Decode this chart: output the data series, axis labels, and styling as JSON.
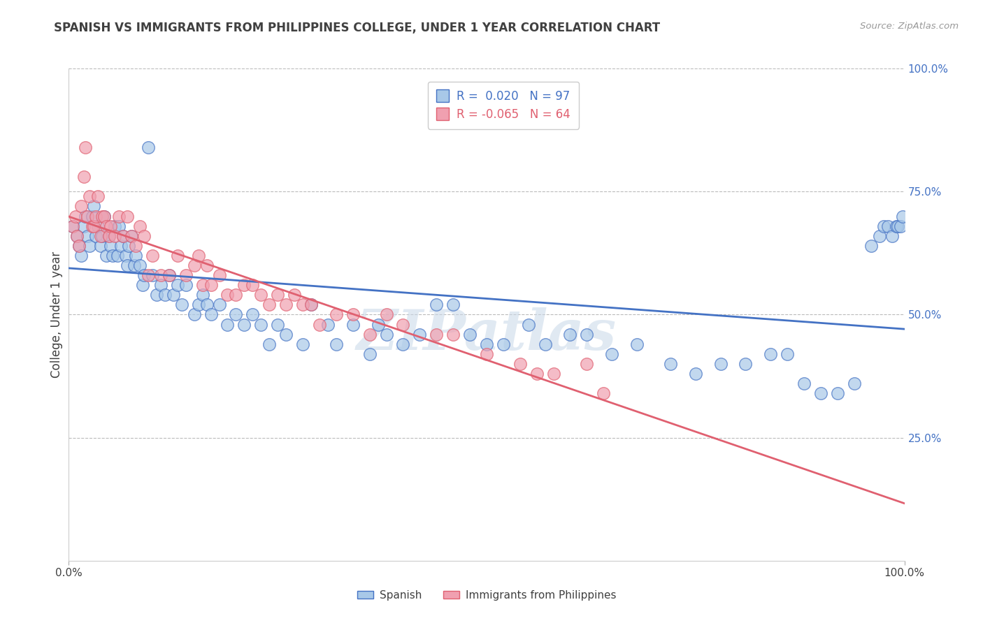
{
  "title": "SPANISH VS IMMIGRANTS FROM PHILIPPINES COLLEGE, UNDER 1 YEAR CORRELATION CHART",
  "source_text": "Source: ZipAtlas.com",
  "ylabel": "College, Under 1 year",
  "xlim": [
    0.0,
    1.0
  ],
  "ylim": [
    0.0,
    1.0
  ],
  "xtick_labels": [
    "0.0%",
    "100.0%"
  ],
  "ytick_labels_right": [
    "100.0%",
    "75.0%",
    "50.0%",
    "25.0%"
  ],
  "right_yticks": [
    1.0,
    0.75,
    0.5,
    0.25
  ],
  "blue_color": "#A8C8E8",
  "pink_color": "#F0A0B0",
  "blue_line_color": "#4472C4",
  "pink_line_color": "#E06070",
  "R_blue": 0.02,
  "N_blue": 97,
  "R_pink": -0.065,
  "N_pink": 64,
  "legend_label_blue": "Spanish",
  "legend_label_pink": "Immigrants from Philippines",
  "watermark": "ZIPatlas",
  "background_color": "#FFFFFF",
  "grid_color": "#BBBBBB",
  "title_color": "#404040",
  "axis_label_color": "#404040",
  "right_axis_color": "#4472C4",
  "blue_scatter_x": [
    0.005,
    0.01,
    0.012,
    0.015,
    0.018,
    0.02,
    0.022,
    0.025,
    0.028,
    0.03,
    0.032,
    0.035,
    0.038,
    0.04,
    0.042,
    0.045,
    0.048,
    0.05,
    0.052,
    0.055,
    0.058,
    0.06,
    0.062,
    0.065,
    0.068,
    0.07,
    0.072,
    0.075,
    0.078,
    0.08,
    0.085,
    0.088,
    0.09,
    0.095,
    0.1,
    0.105,
    0.11,
    0.115,
    0.12,
    0.125,
    0.13,
    0.135,
    0.14,
    0.15,
    0.155,
    0.16,
    0.165,
    0.17,
    0.18,
    0.19,
    0.2,
    0.21,
    0.22,
    0.23,
    0.24,
    0.25,
    0.26,
    0.28,
    0.29,
    0.31,
    0.32,
    0.34,
    0.36,
    0.37,
    0.38,
    0.4,
    0.42,
    0.44,
    0.46,
    0.48,
    0.5,
    0.52,
    0.55,
    0.57,
    0.6,
    0.62,
    0.65,
    0.68,
    0.72,
    0.75,
    0.78,
    0.81,
    0.84,
    0.86,
    0.88,
    0.9,
    0.92,
    0.94,
    0.96,
    0.97,
    0.975,
    0.98,
    0.985,
    0.99,
    0.992,
    0.995,
    0.998
  ],
  "blue_scatter_y": [
    0.68,
    0.66,
    0.64,
    0.62,
    0.68,
    0.7,
    0.66,
    0.64,
    0.7,
    0.72,
    0.66,
    0.68,
    0.64,
    0.66,
    0.7,
    0.62,
    0.66,
    0.64,
    0.62,
    0.68,
    0.62,
    0.68,
    0.64,
    0.66,
    0.62,
    0.6,
    0.64,
    0.66,
    0.6,
    0.62,
    0.6,
    0.56,
    0.58,
    0.84,
    0.58,
    0.54,
    0.56,
    0.54,
    0.58,
    0.54,
    0.56,
    0.52,
    0.56,
    0.5,
    0.52,
    0.54,
    0.52,
    0.5,
    0.52,
    0.48,
    0.5,
    0.48,
    0.5,
    0.48,
    0.44,
    0.48,
    0.46,
    0.44,
    0.52,
    0.48,
    0.44,
    0.48,
    0.42,
    0.48,
    0.46,
    0.44,
    0.46,
    0.52,
    0.52,
    0.46,
    0.44,
    0.44,
    0.48,
    0.44,
    0.46,
    0.46,
    0.42,
    0.44,
    0.4,
    0.38,
    0.4,
    0.4,
    0.42,
    0.42,
    0.36,
    0.34,
    0.34,
    0.36,
    0.64,
    0.66,
    0.68,
    0.68,
    0.66,
    0.68,
    0.68,
    0.68,
    0.7
  ],
  "pink_scatter_x": [
    0.005,
    0.008,
    0.01,
    0.012,
    0.015,
    0.018,
    0.02,
    0.022,
    0.025,
    0.028,
    0.03,
    0.032,
    0.035,
    0.038,
    0.04,
    0.042,
    0.045,
    0.048,
    0.05,
    0.055,
    0.06,
    0.065,
    0.07,
    0.075,
    0.08,
    0.085,
    0.09,
    0.095,
    0.1,
    0.11,
    0.12,
    0.13,
    0.14,
    0.15,
    0.155,
    0.16,
    0.165,
    0.17,
    0.18,
    0.19,
    0.2,
    0.21,
    0.22,
    0.23,
    0.24,
    0.25,
    0.26,
    0.27,
    0.28,
    0.29,
    0.3,
    0.32,
    0.34,
    0.36,
    0.38,
    0.4,
    0.44,
    0.46,
    0.5,
    0.54,
    0.56,
    0.58,
    0.62,
    0.64
  ],
  "pink_scatter_y": [
    0.68,
    0.7,
    0.66,
    0.64,
    0.72,
    0.78,
    0.84,
    0.7,
    0.74,
    0.68,
    0.68,
    0.7,
    0.74,
    0.66,
    0.7,
    0.7,
    0.68,
    0.66,
    0.68,
    0.66,
    0.7,
    0.66,
    0.7,
    0.66,
    0.64,
    0.68,
    0.66,
    0.58,
    0.62,
    0.58,
    0.58,
    0.62,
    0.58,
    0.6,
    0.62,
    0.56,
    0.6,
    0.56,
    0.58,
    0.54,
    0.54,
    0.56,
    0.56,
    0.54,
    0.52,
    0.54,
    0.52,
    0.54,
    0.52,
    0.52,
    0.48,
    0.5,
    0.5,
    0.46,
    0.5,
    0.48,
    0.46,
    0.46,
    0.42,
    0.4,
    0.38,
    0.38,
    0.4,
    0.34
  ]
}
